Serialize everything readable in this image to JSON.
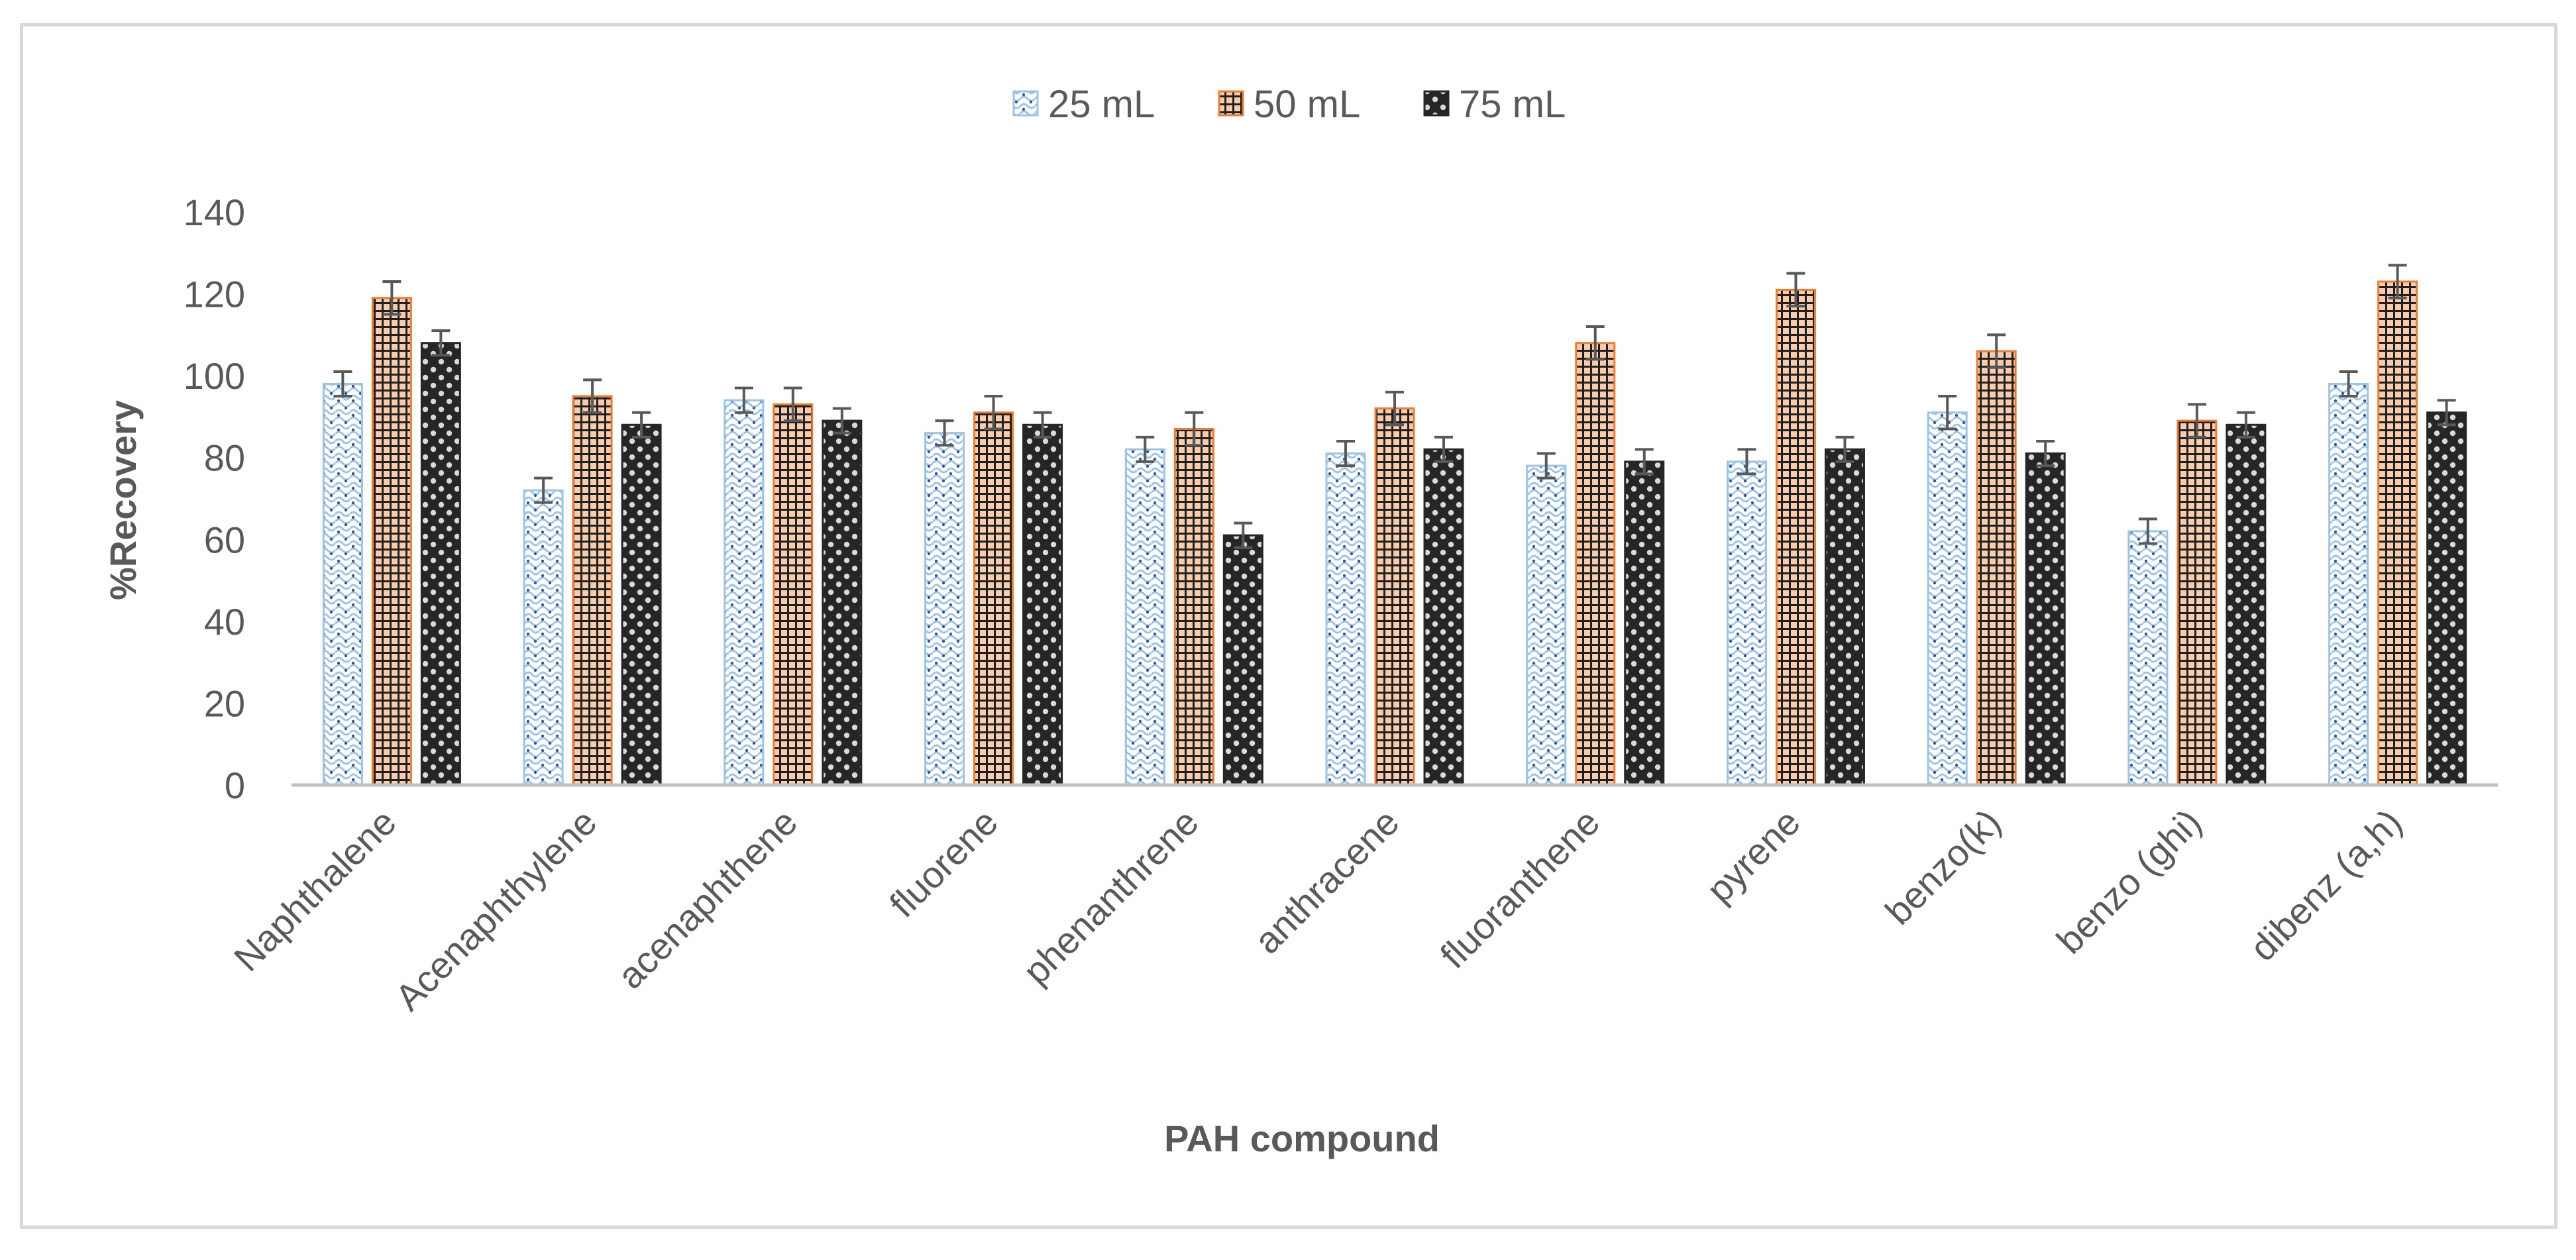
{
  "chart_data": {
    "type": "bar",
    "title": "",
    "xlabel": "PAH compound",
    "ylabel": "%Recovery",
    "ylim": [
      0,
      140
    ],
    "yticks": [
      0,
      20,
      40,
      60,
      80,
      100,
      120,
      140
    ],
    "grid": false,
    "legend_position": "top-center",
    "categories": [
      "Naphthalene",
      "Acenaphthylene",
      "acenaphthene",
      "fluorene",
      "phenanthrene",
      "anthracene",
      "fluoranthene",
      "pyrene",
      "benzo(k)",
      "benzo (ghi)",
      "dibenz (a,h)"
    ],
    "series": [
      {
        "name": "25 mL",
        "color": "#9dc3e6",
        "pattern": "dotted-wave",
        "values": [
          98,
          72,
          94,
          86,
          82,
          81,
          78,
          79,
          91,
          62,
          98
        ],
        "errors": [
          3,
          3,
          3,
          3,
          3,
          3,
          3,
          3,
          4,
          3,
          3
        ]
      },
      {
        "name": "50 mL",
        "color": "#ed7d31",
        "pattern": "grid",
        "values": [
          119,
          95,
          93,
          91,
          87,
          92,
          108,
          121,
          106,
          89,
          123
        ],
        "errors": [
          4,
          4,
          4,
          4,
          4,
          4,
          4,
          4,
          4,
          4,
          4
        ]
      },
      {
        "name": "75 mL",
        "color": "#262626",
        "pattern": "dots",
        "values": [
          108,
          88,
          89,
          88,
          61,
          82,
          79,
          82,
          81,
          88,
          91
        ],
        "errors": [
          3,
          3,
          3,
          3,
          3,
          3,
          3,
          3,
          3,
          3,
          3
        ]
      }
    ]
  }
}
